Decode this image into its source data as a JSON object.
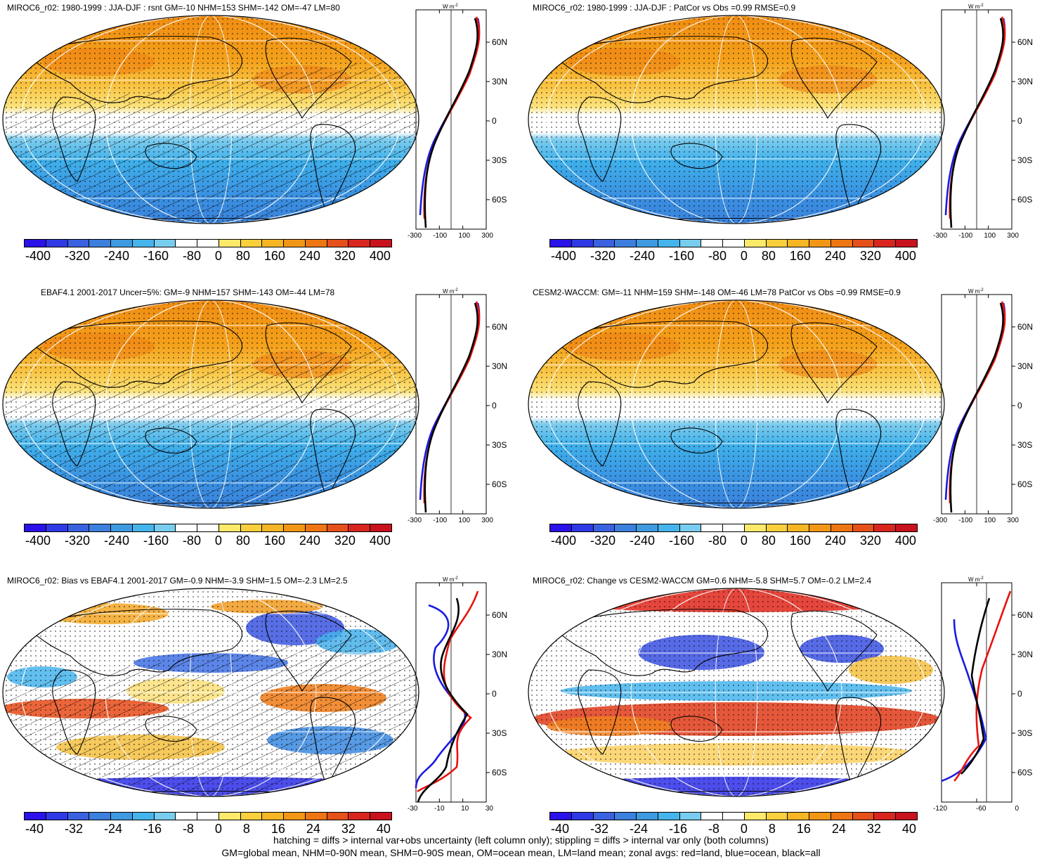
{
  "panels": [
    {
      "title": "MIROC6_r02: 1980-1999 : JJA-DJF : rsnt GM=-10 NHM=153 SHM=-142 OM=-47 LM=80",
      "kind": "clim",
      "hatch": true,
      "cb_labels": [
        "-400",
        "-320",
        "-240",
        "-160",
        "-80",
        "0",
        "80",
        "160",
        "240",
        "320",
        "400"
      ],
      "zx_labels": [
        "-300",
        "-100",
        "100",
        "300"
      ]
    },
    {
      "title": "MIROC6_r02: 1980-1999 : JJA-DJF : PatCor vs Obs =0.99 RMSE=0.9",
      "kind": "clim",
      "hatch": false,
      "cb_labels": [
        "-400",
        "-320",
        "-240",
        "-160",
        "-80",
        "0",
        "80",
        "160",
        "240",
        "320",
        "400"
      ],
      "zx_labels": [
        "-300",
        "-100",
        "100",
        "300"
      ]
    },
    {
      "title": "EBAF4.1 2001-2017 Uncer=5%: GM=-9 NHM=157 SHM=-143 OM=-44 LM=78",
      "kind": "clim",
      "hatch": true,
      "cb_labels": [
        "-400",
        "-320",
        "-240",
        "-160",
        "-80",
        "0",
        "80",
        "160",
        "240",
        "320",
        "400"
      ],
      "zx_labels": [
        "-300",
        "-100",
        "100",
        "300"
      ]
    },
    {
      "title": "CESM2-WACCM: GM=-11 NHM=159 SHM=-148 OM=-46 LM=78 PatCor vs Obs =0.99 RMSE=0.9",
      "kind": "clim",
      "hatch": false,
      "cb_labels": [
        "-400",
        "-320",
        "-240",
        "-160",
        "-80",
        "0",
        "80",
        "160",
        "240",
        "320",
        "400"
      ],
      "zx_labels": [
        "-300",
        "-100",
        "100",
        "300"
      ]
    },
    {
      "title": "MIROC6_r02: Bias vs EBAF4.1 2001-2017 GM=-0.9 NHM=-3.9 SHM=1.5 OM=-2.3 LM=2.5",
      "kind": "diff",
      "hatch": true,
      "cb_labels": [
        "-40",
        "-32",
        "-24",
        "-16",
        "-8",
        "0",
        "8",
        "16",
        "24",
        "32",
        "40"
      ],
      "zx_labels": [
        "-30",
        "-10",
        "10",
        "30"
      ]
    },
    {
      "title": "MIROC6_r02: Change vs CESM2-WACCM GM=0.6 NHM=-5.8 SHM=5.7 OM=-0.2 LM=2.4",
      "kind": "diff",
      "hatch": false,
      "cb_labels": [
        "-40",
        "-32",
        "-24",
        "-16",
        "-8",
        "0",
        "8",
        "16",
        "24",
        "32",
        "40"
      ],
      "zx_labels": [
        "-120",
        "-60",
        "0"
      ]
    }
  ],
  "lat_labels": [
    "60N",
    "30N",
    "0",
    "30S",
    "60S"
  ],
  "units": "W m",
  "units_sup": "-2",
  "colorbar_colors": [
    "#2a12e8",
    "#2f3ae6",
    "#3a62e0",
    "#3d7fdc",
    "#3e9ae0",
    "#45b4ec",
    "#78cdee",
    "#ffffff",
    "#ffffff",
    "#fde96a",
    "#f9cf3c",
    "#f6b522",
    "#f29715",
    "#ee7612",
    "#e6501a",
    "#d8261f",
    "#c8121e"
  ],
  "footer": [
    "hatching = diffs > internal var+obs uncertainty (left column only); stippling = diffs > internal var only (both columns)",
    "GM=global mean, NHM=0-90N mean, SHM=0-90S mean, OM=ocean mean, LM=land mean; zonal avgs: red=land, blue=ocean, black=all"
  ],
  "legend_colors": {
    "land": "#e8120c",
    "ocean": "#1a1ae0",
    "all": "#000000"
  }
}
